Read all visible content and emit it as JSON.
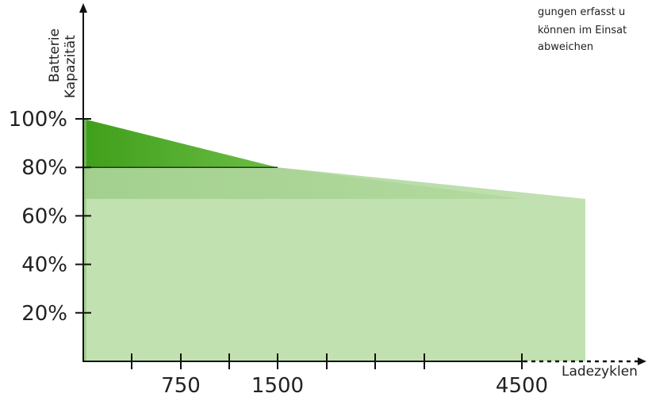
{
  "chart_data": {
    "type": "area",
    "ylabel_lines": [
      "Batterie",
      "Kapazität"
    ],
    "xlabel": "Ladezyklen",
    "note_lines": [
      "gungen erfasst u",
      "können im Einsat",
      "abweichen"
    ],
    "y_ticks": [
      {
        "value": 20,
        "label": "20%"
      },
      {
        "value": 40,
        "label": "40%"
      },
      {
        "value": 60,
        "label": "60%"
      },
      {
        "value": 80,
        "label": "80%"
      },
      {
        "value": 100,
        "label": "100%"
      }
    ],
    "x_ticks": [
      0,
      375,
      750,
      1125,
      1500,
      1875,
      2250,
      2625,
      4500
    ],
    "x_tick_labels": [
      {
        "value": 750,
        "label": "750"
      },
      {
        "value": 1500,
        "label": "1500"
      },
      {
        "value": 4500,
        "label": "4500"
      }
    ],
    "ylim": [
      0,
      100
    ],
    "series": [
      {
        "name": "",
        "color": "#49a91f",
        "points": [
          [
            0,
            100
          ],
          [
            1500,
            80
          ]
        ]
      },
      {
        "name": "",
        "color": "#c1e2b0",
        "points": [
          [
            0,
            80
          ],
          [
            1500,
            80
          ],
          [
            4500,
            67
          ]
        ]
      }
    ],
    "reference_line": {
      "y": 80,
      "x_end": 1500
    },
    "colors": {
      "axis": "#111111",
      "light_green": "#c1e2b0",
      "dark_green": "#49a91f",
      "mid_green": "#93c57f"
    }
  }
}
